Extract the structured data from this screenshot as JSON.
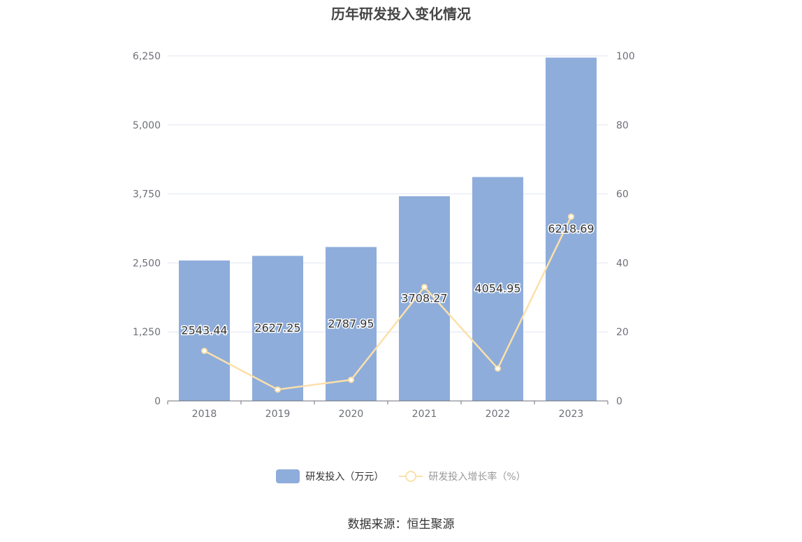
{
  "title": "历年研发投入变化情况",
  "source": "数据来源：恒生聚源",
  "colors": {
    "bar": "#8eaddb",
    "line": "#fbe0aa",
    "axis": "#6e7079",
    "grid": "#e0e6f1",
    "tick": "#6e7079"
  },
  "legend": {
    "bar_label": "研发投入（万元）",
    "line_label": "研发投入增长率（%）"
  },
  "chart_data": {
    "type": "bar",
    "categories": [
      "2018",
      "2019",
      "2020",
      "2021",
      "2022",
      "2023"
    ],
    "series": [
      {
        "name": "研发投入（万元）",
        "type": "bar",
        "axis": "left",
        "values": [
          2543.44,
          2627.25,
          2787.95,
          3708.27,
          4054.95,
          6218.69
        ],
        "labels": [
          "2543.44",
          "2627.25",
          "2787.95",
          "3708.27",
          "4054.95",
          "6218.69"
        ]
      },
      {
        "name": "研发投入增长率（%）",
        "type": "line",
        "axis": "right",
        "values": [
          14.5,
          3.3,
          6.1,
          33.0,
          9.4,
          53.4
        ]
      }
    ],
    "y_left": {
      "min": 0,
      "max": 6250,
      "ticks": [
        0,
        1250,
        2500,
        3750,
        5000,
        6250
      ],
      "tick_labels": [
        "0",
        "1,250",
        "2,500",
        "3,750",
        "5,000",
        "6,250"
      ]
    },
    "y_right": {
      "min": 0,
      "max": 100,
      "ticks": [
        0,
        20,
        40,
        60,
        80,
        100
      ],
      "tick_labels": [
        "0",
        "20",
        "40",
        "60",
        "80",
        "100"
      ]
    },
    "grid": true,
    "legend_position": "bottom"
  }
}
